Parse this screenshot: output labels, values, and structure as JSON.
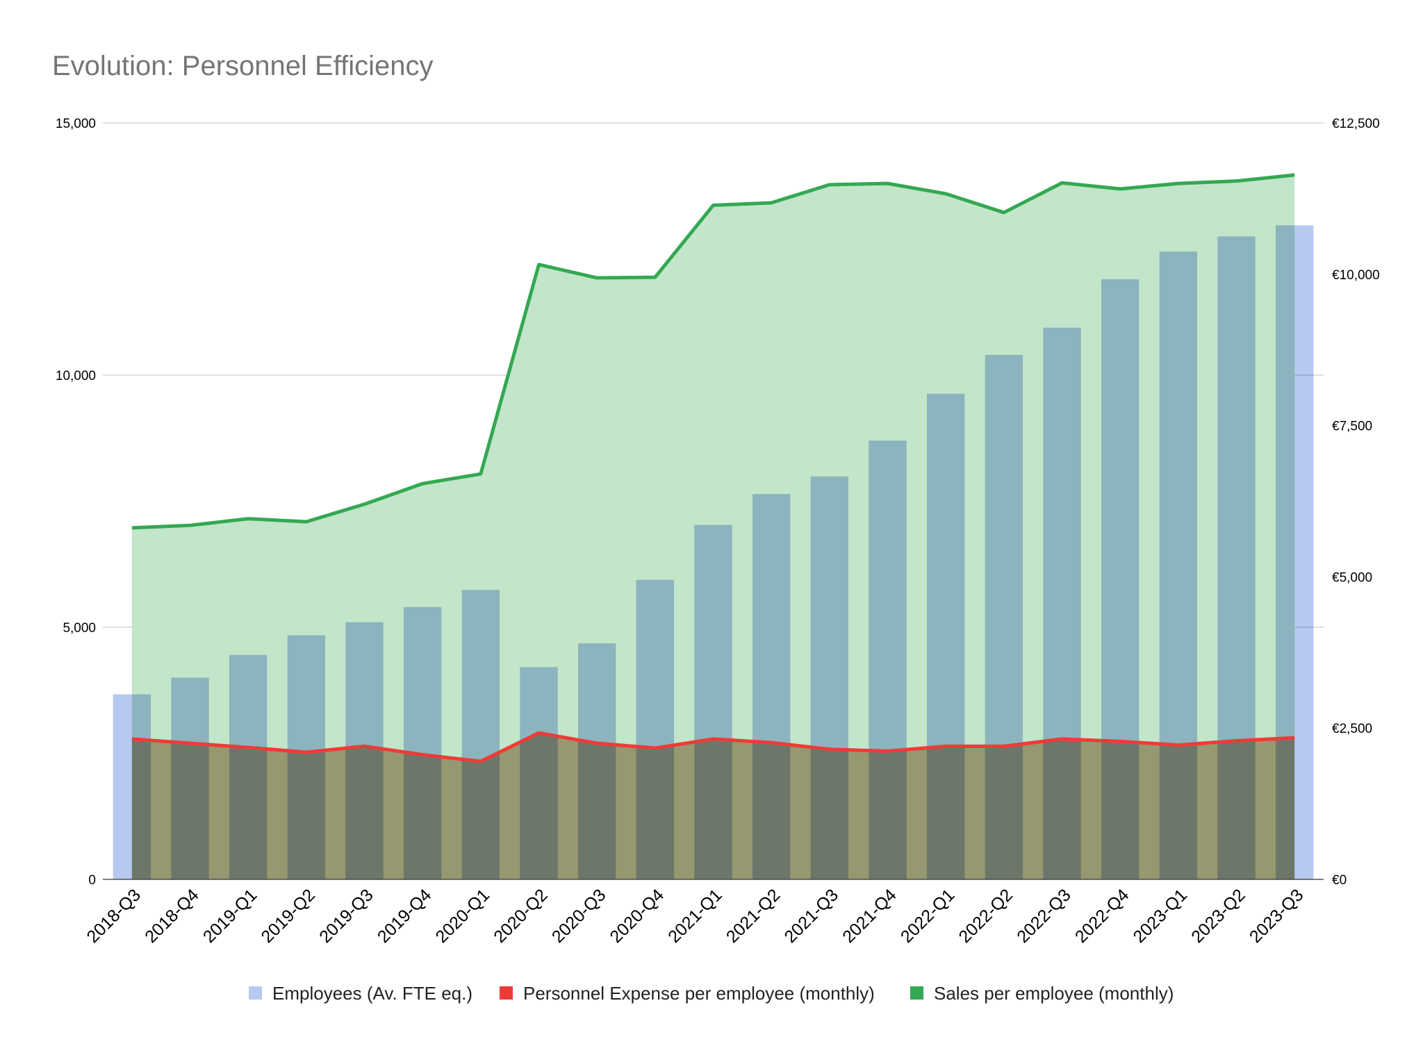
{
  "chart_data": {
    "type": "bar",
    "title": "Evolution: Personnel Efficiency",
    "categories": [
      "2018-Q3",
      "2018-Q4",
      "2019-Q1",
      "2019-Q2",
      "2019-Q3",
      "2019-Q4",
      "2020-Q1",
      "2020-Q2",
      "2020-Q3",
      "2020-Q4",
      "2021-Q1",
      "2021-Q2",
      "2021-Q3",
      "2021-Q4",
      "2022-Q1",
      "2022-Q2",
      "2022-Q3",
      "2022-Q4",
      "2023-Q1",
      "2023-Q2",
      "2023-Q3"
    ],
    "y_left": {
      "ylim": [
        0,
        15000
      ],
      "ticks": [
        "0",
        "5,000",
        "10,000",
        "15,000"
      ],
      "tick_values": [
        0,
        5000,
        10000,
        15000
      ]
    },
    "y_right": {
      "ylim": [
        0,
        12500
      ],
      "ticks": [
        "€0",
        "€2,500",
        "€5,000",
        "€7,500",
        "€10,000",
        "€12,500"
      ],
      "tick_values": [
        0,
        2500,
        5000,
        7500,
        10000,
        12500
      ]
    },
    "series": [
      {
        "name": "Employees (Av. FTE eq.)",
        "kind": "bar",
        "axis": "left",
        "color": "#b7c9f1",
        "values": [
          3670,
          4000,
          4450,
          4840,
          5100,
          5400,
          5740,
          4210,
          4680,
          5940,
          7030,
          7640,
          7990,
          8700,
          9630,
          10400,
          10940,
          11900,
          12450,
          12750,
          12970
        ]
      },
      {
        "name": "Personnel Expense per employee (monthly)",
        "kind": "area-line",
        "axis": "right",
        "color": "#ee3b37",
        "fill": "#c4a98e",
        "values": [
          2320,
          2250,
          2180,
          2100,
          2200,
          2060,
          1950,
          2420,
          2250,
          2170,
          2320,
          2260,
          2150,
          2120,
          2200,
          2200,
          2320,
          2280,
          2220,
          2290,
          2340
        ]
      },
      {
        "name": "Sales per employee (monthly)",
        "kind": "area-line",
        "axis": "right",
        "color": "#34a853",
        "fill": "#c3e5c9",
        "values": [
          5810,
          5850,
          5960,
          5910,
          6200,
          6540,
          6700,
          10160,
          9940,
          9950,
          11140,
          11180,
          11480,
          11500,
          11330,
          11020,
          11510,
          11410,
          11500,
          11540,
          11640
        ]
      }
    ],
    "legend_placement": "bottom",
    "grid": true
  }
}
